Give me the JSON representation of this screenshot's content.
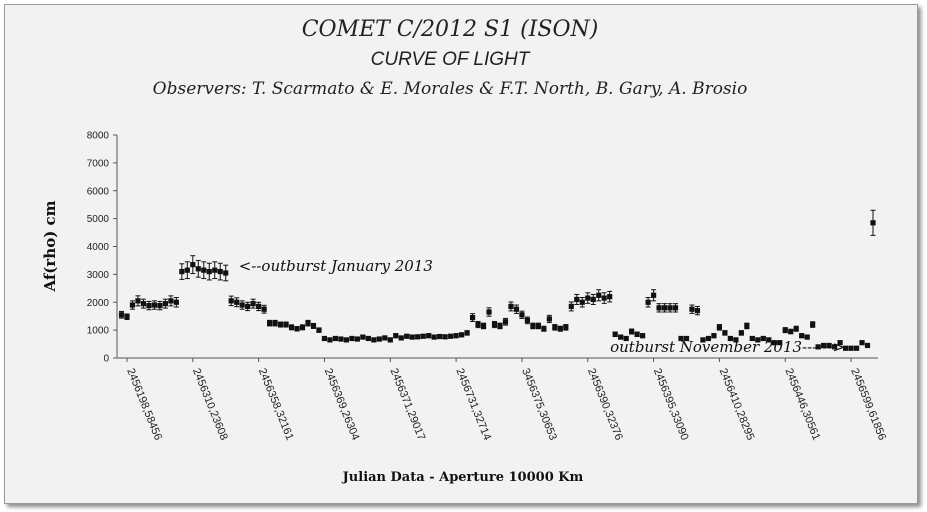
{
  "chart_data": {
    "type": "scatter",
    "title": "COMET C/2012 S1 (ISON)",
    "subtitle": "CURVE OF LIGHT",
    "observers": "Observers: T. Scarmato & E. Morales & F.T. North, B. Gary, A. Brosio",
    "xlabel": "Julian Data - Aperture 10000 Km",
    "ylabel": "Af(rho) cm",
    "ylim": [
      0,
      8000
    ],
    "yticks": [
      "0",
      "1000",
      "2000",
      "3000",
      "4000",
      "5000",
      "6000",
      "7000",
      "8000"
    ],
    "grid": false,
    "error_bars": true,
    "xtick_labels": [
      {
        "label": "2456198,58456",
        "index": 1
      },
      {
        "label": "2456310,23608",
        "index": 13
      },
      {
        "label": "2456358,32161",
        "index": 25
      },
      {
        "label": "2456369,26304",
        "index": 37
      },
      {
        "label": "2456371,29017",
        "index": 49
      },
      {
        "label": "2456731,32714",
        "index": 61
      },
      {
        "label": "3456375,30653",
        "index": 73
      },
      {
        "label": "2456390,32376",
        "index": 85
      },
      {
        "label": "2456395,33090",
        "index": 97
      },
      {
        "label": "2456410,28295",
        "index": 109
      },
      {
        "label": "2456446,30561",
        "index": 121
      },
      {
        "label": "2456599,61856",
        "index": 133
      }
    ],
    "annotations": [
      {
        "text": "<--outburst January 2013",
        "point_index": 19
      },
      {
        "text": "outburst November 2013------>",
        "point_index": 133
      }
    ],
    "values": [
      1550,
      1480,
      1900,
      2050,
      1950,
      1880,
      1900,
      1880,
      1950,
      2050,
      2000,
      3100,
      3150,
      3350,
      3200,
      3150,
      3100,
      3150,
      3100,
      3050,
      2050,
      2000,
      1900,
      1850,
      1950,
      1850,
      1750,
      1250,
      1250,
      1200,
      1200,
      1100,
      1050,
      1100,
      1250,
      1150,
      1000,
      700,
      650,
      700,
      680,
      650,
      700,
      680,
      750,
      700,
      650,
      680,
      720,
      650,
      800,
      720,
      780,
      750,
      760,
      780,
      800,
      750,
      770,
      760,
      780,
      800,
      830,
      900,
      1450,
      1200,
      1150,
      1650,
      1200,
      1150,
      1300,
      1850,
      1750,
      1550,
      1350,
      1150,
      1150,
      1050,
      1400,
      1100,
      1050,
      1100,
      1850,
      2100,
      2000,
      2150,
      2100,
      2250,
      2150,
      2200,
      850,
      750,
      700,
      950,
      850,
      800,
      2000,
      2250,
      1800,
      1800,
      1800,
      1800,
      700,
      700,
      1750,
      1700,
      650,
      700,
      800,
      1100,
      900,
      700,
      650,
      900,
      1150,
      700,
      650,
      700,
      650,
      550,
      550,
      1000,
      950,
      1050,
      800,
      750,
      1200,
      400,
      450,
      450,
      400,
      550,
      350,
      350,
      350,
      550,
      450,
      4850
    ],
    "errors": [
      120,
      100,
      150,
      180,
      160,
      150,
      150,
      150,
      160,
      180,
      170,
      280,
      300,
      320,
      300,
      300,
      300,
      300,
      300,
      280,
      170,
      160,
      150,
      150,
      160,
      150,
      140,
      100,
      100,
      90,
      90,
      90,
      80,
      90,
      100,
      90,
      80,
      60,
      50,
      60,
      50,
      50,
      60,
      50,
      60,
      60,
      50,
      50,
      60,
      50,
      70,
      60,
      60,
      60,
      60,
      60,
      70,
      60,
      60,
      60,
      60,
      70,
      70,
      80,
      140,
      110,
      100,
      150,
      110,
      100,
      120,
      160,
      150,
      130,
      120,
      100,
      100,
      90,
      130,
      100,
      90,
      100,
      160,
      180,
      170,
      190,
      180,
      200,
      190,
      190,
      80,
      70,
      60,
      90,
      80,
      70,
      170,
      200,
      150,
      150,
      150,
      150,
      60,
      60,
      150,
      150,
      60,
      60,
      70,
      100,
      80,
      60,
      60,
      80,
      100,
      60,
      60,
      60,
      60,
      50,
      50,
      90,
      80,
      90,
      70,
      60,
      100,
      40,
      40,
      40,
      40,
      50,
      30,
      30,
      30,
      50,
      40,
      450
    ]
  }
}
